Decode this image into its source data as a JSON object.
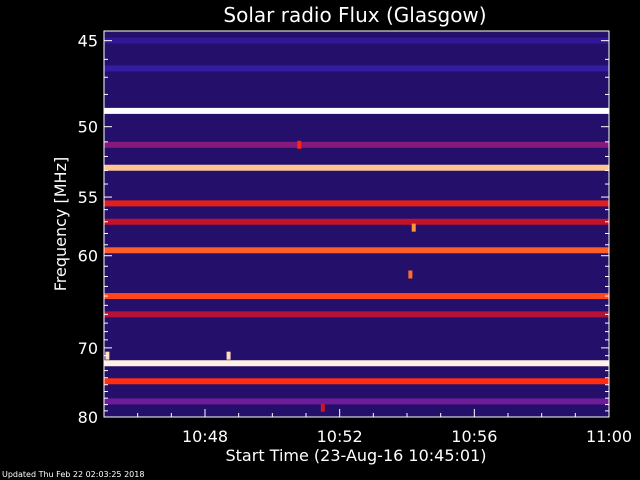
{
  "chart_data": {
    "type": "heatmap",
    "title": "Solar radio Flux (Glasgow)",
    "ylabel": "Frequency [MHz]",
    "xlabel": "Start Time (23-Aug-16 10:45:01)",
    "x_ticks": [
      "10:48",
      "10:52",
      "10:56",
      "11:00"
    ],
    "x_tick_minutes": [
      3,
      7,
      11,
      15
    ],
    "xlim_minutes": [
      0,
      15
    ],
    "y_ticks": [
      45,
      50,
      55,
      60,
      70,
      80
    ],
    "ylim": [
      44.5,
      80
    ],
    "y_scale": "reciprocal",
    "colormap": [
      "#000000",
      "#2a0a6e",
      "#3b2bd0",
      "#7a1a8a",
      "#c0102a",
      "#ff2a10",
      "#ff9a40",
      "#ffffff"
    ],
    "bands": [
      {
        "freq": 45.0,
        "intensity": 0.2
      },
      {
        "freq": 46.5,
        "intensity": 0.22
      },
      {
        "freq": 49.0,
        "intensity": 1.0
      },
      {
        "freq": 51.2,
        "intensity": 0.45
      },
      {
        "freq": 52.8,
        "intensity": 0.92
      },
      {
        "freq": 55.5,
        "intensity": 0.65
      },
      {
        "freq": 57.0,
        "intensity": 0.58
      },
      {
        "freq": 59.5,
        "intensity": 0.78
      },
      {
        "freq": 64.0,
        "intensity": 0.75
      },
      {
        "freq": 66.0,
        "intensity": 0.55
      },
      {
        "freq": 72.0,
        "intensity": 0.98
      },
      {
        "freq": 74.5,
        "intensity": 0.72
      },
      {
        "freq": 77.5,
        "intensity": 0.4
      }
    ],
    "bursts": [
      {
        "minute": 0.1,
        "freq": 71.0,
        "intensity": 0.95
      },
      {
        "minute": 3.7,
        "freq": 71.0,
        "intensity": 0.95
      },
      {
        "minute": 5.8,
        "freq": 51.2,
        "intensity": 0.7
      },
      {
        "minute": 9.2,
        "freq": 57.5,
        "intensity": 0.85
      },
      {
        "minute": 9.1,
        "freq": 61.8,
        "intensity": 0.8
      },
      {
        "minute": 6.5,
        "freq": 78.5,
        "intensity": 0.6
      }
    ]
  },
  "footer": "Updated Thu Feb 22 02:03:25 2018"
}
